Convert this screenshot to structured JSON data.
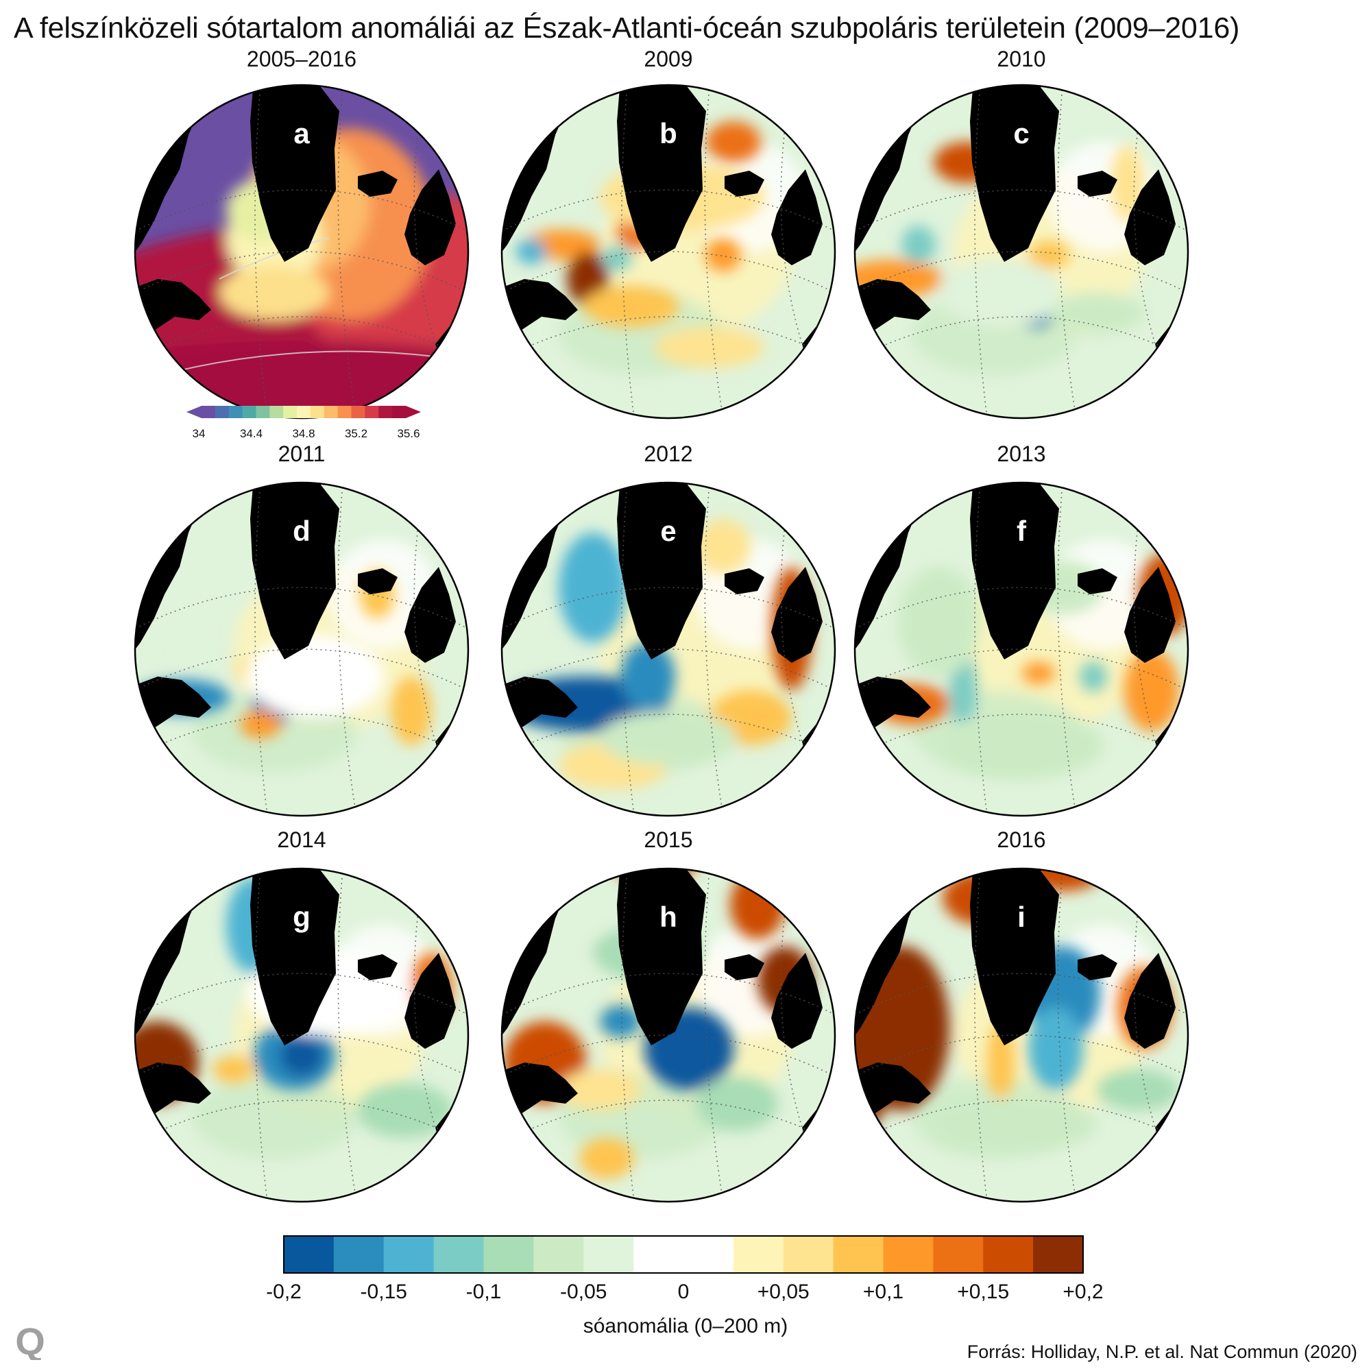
{
  "title": "A felszínközeli sótartalom anomáliái az Észak-Atlanti-óceán szubpoláris területein (2009–2016)",
  "panels": [
    {
      "letter": "a",
      "label": "2005–2016",
      "kind": "climatology"
    },
    {
      "letter": "b",
      "label": "2009",
      "kind": "anomaly"
    },
    {
      "letter": "c",
      "label": "2010",
      "kind": "anomaly"
    },
    {
      "letter": "d",
      "label": "2011",
      "kind": "anomaly"
    },
    {
      "letter": "e",
      "label": "2012",
      "kind": "anomaly"
    },
    {
      "letter": "f",
      "label": "2013",
      "kind": "anomaly"
    },
    {
      "letter": "g",
      "label": "2014",
      "kind": "anomaly"
    },
    {
      "letter": "h",
      "label": "2015",
      "kind": "anomaly"
    },
    {
      "letter": "i",
      "label": "2016",
      "kind": "anomaly"
    }
  ],
  "climatology_scale": {
    "ticks": [
      "34",
      "34.4",
      "34.8",
      "35.2",
      "35.6"
    ],
    "colors": [
      "#6a4fa3",
      "#4d6fb0",
      "#3f8fb6",
      "#4faaa6",
      "#7ec3a1",
      "#b6dca0",
      "#e6f0a3",
      "#fbf4b5",
      "#fde08b",
      "#fcbc6a",
      "#f79050",
      "#ea6345",
      "#d63b4a",
      "#b0173f",
      "#a40f3f"
    ]
  },
  "anomaly_scale": {
    "ticks": [
      "-0,2",
      "-0,15",
      "-0,1",
      "-0,05",
      "0",
      "+0,05",
      "+0,1",
      "+0,15",
      "+0,2"
    ],
    "colors": [
      "#08589e",
      "#2b8cbe",
      "#4eb3d3",
      "#7bccc4",
      "#a8ddb5",
      "#ccebc5",
      "#e0f3db",
      "#ffffff",
      "#ffffff",
      "#fff4b8",
      "#fee391",
      "#fec44f",
      "#fe9929",
      "#ec7014",
      "#cc4c02",
      "#8c2d04"
    ]
  },
  "unit_label": "sóanomália (0–200 m)",
  "source": "Forrás: Holliday, N.P. et al. Nat Commun (2020)",
  "logo_letter": "Q",
  "colors": {
    "land": "#000000",
    "grid": "#555555",
    "white": "#ffffff",
    "logo": "#a0a0a0"
  }
}
